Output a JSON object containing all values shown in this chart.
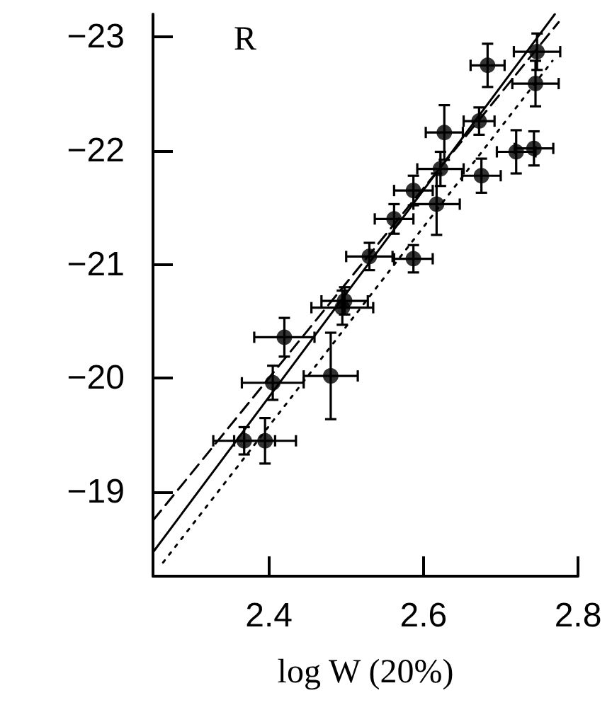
{
  "chart_data": {
    "type": "scatter",
    "xlabel": "log W (20%)",
    "annotations": [
      "R"
    ],
    "xlim": [
      2.25,
      2.8
    ],
    "xticks": [
      2.4,
      2.6,
      2.8
    ],
    "ylim": [
      -18.26,
      -23.2
    ],
    "yticks": [
      -23,
      -22,
      -21,
      -20,
      -19
    ],
    "grid": false,
    "series": [
      {
        "color": "#000000",
        "marker": "circle",
        "x": [
          2.683,
          2.747,
          2.745,
          2.627,
          2.672,
          2.72,
          2.743,
          2.675,
          2.622,
          2.617,
          2.587,
          2.562,
          2.587,
          2.53,
          2.498,
          2.495,
          2.42,
          2.405,
          2.48,
          2.368,
          2.395
        ],
        "values": [
          -22.75,
          -22.87,
          -22.59,
          -22.16,
          -22.26,
          -21.99,
          -22.02,
          -21.78,
          -21.84,
          -21.53,
          -21.65,
          -21.4,
          -21.05,
          -21.07,
          -20.68,
          -20.62,
          -20.36,
          -19.96,
          -20.02,
          -19.45,
          -19.45
        ],
        "errors": [
          0.19,
          0.16,
          0.2,
          0.24,
          0.12,
          0.19,
          0.15,
          0.15,
          0.15,
          0.27,
          0.13,
          0.13,
          0.12,
          0.12,
          0.12,
          0.15,
          0.17,
          0.15,
          0.38,
          0.12,
          0.2
        ],
        "xerrors": [
          0.022,
          0.03,
          0.03,
          0.024,
          0.02,
          0.025,
          0.025,
          0.025,
          0.03,
          0.03,
          0.025,
          0.025,
          0.025,
          0.03,
          0.03,
          0.04,
          0.039,
          0.04,
          0.035,
          0.04,
          0.04
        ]
      },
      {
        "type": "line",
        "color": "#000000",
        "marker": "none",
        "line_style": "solid",
        "x": [
          2.25,
          2.77
        ],
        "values": [
          -18.47,
          -23.2
        ]
      },
      {
        "type": "line",
        "color": "#000000",
        "marker": "none",
        "line_style": "dashed",
        "x": [
          2.25,
          2.775
        ],
        "values": [
          -18.75,
          -23.13
        ]
      },
      {
        "type": "line",
        "color": "#000000",
        "marker": "none",
        "line_style": "dotted",
        "x": [
          2.263,
          2.767
        ],
        "values": [
          -18.38,
          -22.79
        ]
      }
    ]
  }
}
